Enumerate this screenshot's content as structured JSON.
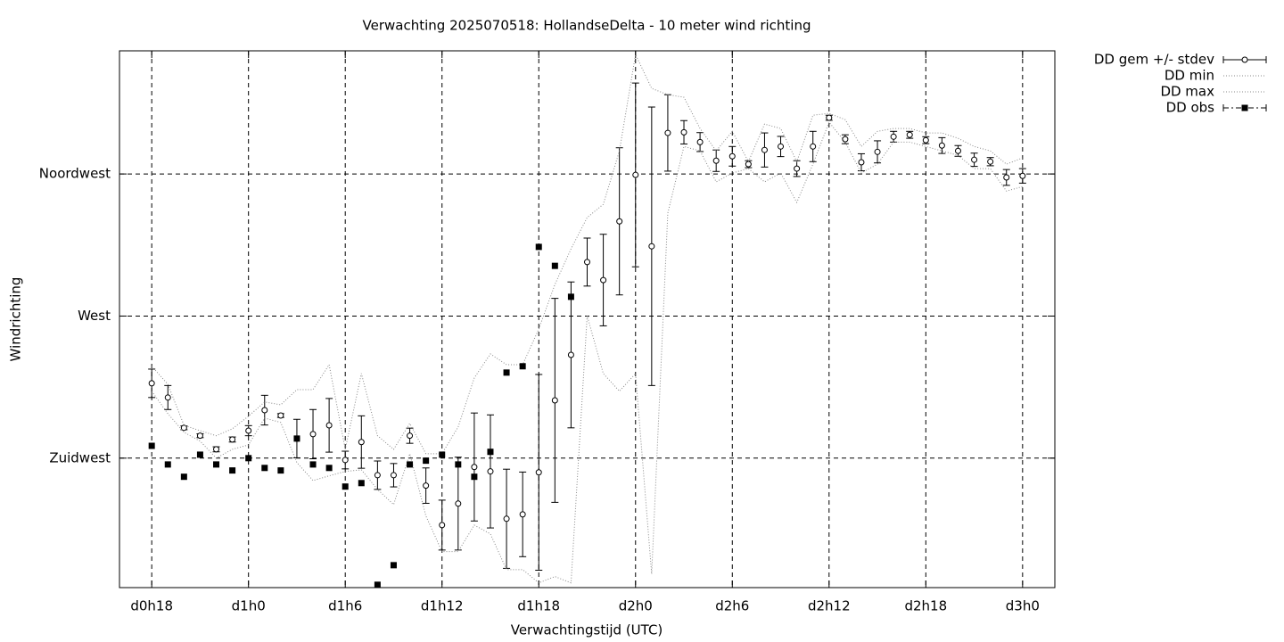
{
  "chart_data": {
    "type": "line",
    "title": "Verwachting 2025070518: HollandseDelta - 10 meter wind richting",
    "x_label": "Verwachtingstijd (UTC)",
    "y_label": "Windrichting",
    "x": [
      18,
      19,
      20,
      21,
      22,
      23,
      24,
      25,
      26,
      27,
      28,
      29,
      30,
      31,
      32,
      33,
      34,
      35,
      36,
      37,
      38,
      39,
      40,
      41,
      42,
      43,
      44,
      45,
      46,
      47,
      48,
      49,
      50,
      51,
      52,
      53,
      54,
      55,
      56,
      57,
      58,
      59,
      60,
      61,
      62,
      63,
      64,
      65,
      66,
      67,
      68,
      69,
      70,
      71,
      72
    ],
    "xlim": [
      16,
      74
    ],
    "xticks": [
      {
        "value": 18,
        "label": "d0h18"
      },
      {
        "value": 24,
        "label": "d1h0"
      },
      {
        "value": 30,
        "label": "d1h6"
      },
      {
        "value": 36,
        "label": "d1h12"
      },
      {
        "value": 42,
        "label": "d1h18"
      },
      {
        "value": 48,
        "label": "d2h0"
      },
      {
        "value": 54,
        "label": "d2h6"
      },
      {
        "value": 60,
        "label": "d2h12"
      },
      {
        "value": 66,
        "label": "d2h18"
      },
      {
        "value": 72,
        "label": "d3h0"
      }
    ],
    "ylim": [
      184,
      354
    ],
    "yticks": [
      {
        "value": 225,
        "label": "Zuidwest"
      },
      {
        "value": 270,
        "label": "West"
      },
      {
        "value": 315,
        "label": "Noordwest"
      }
    ],
    "grid": true,
    "legend": "outside-right",
    "series": [
      {
        "name": "DD gem +/- stdev",
        "color": "#000000",
        "style": "errorbar",
        "values": [
          248.7,
          244.2,
          234.6,
          232.1,
          227.8,
          230.9,
          233.7,
          240.2,
          238.5,
          231.2,
          232.6,
          235.4,
          224.4,
          230.1,
          219.6,
          219.6,
          232.1,
          216.3,
          203.8,
          210.6,
          222.2,
          220.8,
          205.8,
          207.2,
          220.5,
          243.3,
          257.7,
          287.1,
          281.4,
          300.0,
          314.7,
          292.1,
          328.0,
          328.2,
          325.1,
          319.2,
          320.6,
          318.1,
          322.6,
          323.7,
          316.7,
          323.7,
          332.8,
          326.0,
          318.7,
          322.0,
          326.8,
          327.4,
          325.7,
          324.0,
          322.3,
          319.5,
          318.9,
          313.9,
          314.4
        ],
        "errors": [
          4.5,
          3.8,
          0.6,
          0.6,
          0.8,
          0.8,
          1.6,
          4.7,
          0.6,
          6.1,
          7.8,
          8.5,
          2.8,
          8.3,
          4.5,
          3.7,
          2.4,
          5.6,
          7.9,
          14.7,
          17.1,
          17.9,
          15.7,
          13.4,
          31.0,
          32.3,
          23.1,
          7.6,
          14.5,
          23.3,
          29.1,
          44.1,
          12.1,
          3.7,
          3.0,
          3.4,
          3.1,
          1.1,
          5.4,
          3.2,
          2.5,
          4.8,
          0.8,
          1.4,
          2.7,
          3.5,
          1.7,
          1.1,
          1.1,
          2.5,
          1.7,
          2.1,
          1.3,
          2.5,
          2.3
        ]
      },
      {
        "name": "DD min",
        "color": "#888888",
        "style": "dotted",
        "values": [
          246.2,
          239.1,
          233.2,
          230.4,
          225.0,
          227.8,
          229.2,
          237.7,
          236.3,
          223.6,
          217.9,
          219.4,
          220.8,
          221.3,
          215.1,
          210.3,
          226.4,
          206.7,
          195.4,
          195.4,
          203.8,
          201.0,
          189.7,
          189.7,
          185.5,
          187.5,
          185.5,
          270.1,
          251.8,
          246.2,
          251.8,
          188.3,
          302.6,
          323.7,
          322.3,
          312.5,
          315.3,
          316.7,
          312.5,
          315.3,
          306.0,
          318.1,
          331.4,
          325.1,
          315.3,
          318.1,
          325.1,
          325.1,
          323.7,
          322.3,
          320.9,
          316.7,
          316.7,
          309.6,
          311.0
        ]
      },
      {
        "name": "DD max",
        "color": "#888888",
        "style": "dotted",
        "values": [
          254.1,
          248.4,
          235.4,
          233.7,
          232.1,
          234.3,
          238.3,
          242.8,
          241.9,
          246.7,
          246.7,
          254.6,
          227.8,
          251.8,
          232.1,
          227.8,
          236.0,
          226.4,
          226.4,
          234.9,
          250.4,
          258.0,
          254.6,
          254.6,
          265.9,
          280.0,
          291.3,
          301.2,
          305.4,
          322.3,
          352.8,
          342.1,
          340.1,
          339.3,
          329.4,
          322.3,
          328.5,
          318.9,
          330.8,
          329.4,
          318.9,
          333.6,
          334.2,
          332.2,
          323.7,
          328.5,
          329.4,
          329.4,
          328.0,
          328.0,
          326.3,
          323.7,
          322.3,
          318.1,
          320.1
        ]
      },
      {
        "name": "DD obs",
        "color": "#000000",
        "style": "points",
        "values": [
          228.9,
          223.0,
          219.1,
          226.1,
          223.0,
          221.1,
          225,
          221.9,
          221.1,
          231.2,
          223.0,
          221.9,
          216.0,
          217.1,
          184.9,
          191.1,
          223.0,
          224.2,
          226.1,
          223.0,
          219.1,
          227.0,
          252.1,
          254.1,
          291.9,
          285.9,
          276.1,
          null,
          null,
          null,
          null,
          null,
          null,
          null,
          null,
          null,
          null,
          null,
          null,
          null,
          null,
          null,
          null,
          null,
          null,
          null,
          null,
          null,
          null,
          null,
          null,
          null,
          null,
          null,
          null
        ]
      }
    ]
  }
}
